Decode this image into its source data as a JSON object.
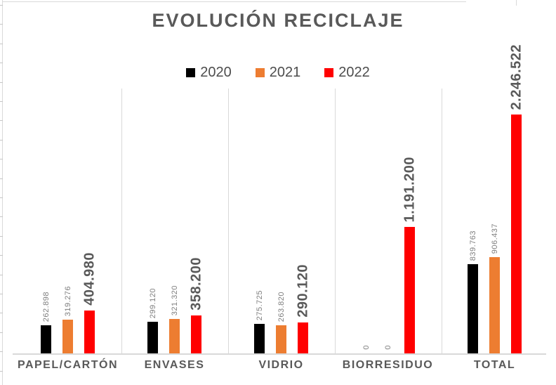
{
  "chart_data": {
    "type": "bar",
    "title": "EVOLUCIÓN RECICLAJE",
    "categories": [
      "PAPEL/CARTÓN",
      "ENVASES",
      "VIDRIO",
      "BIORRESIDUO",
      "TOTAL"
    ],
    "series": [
      {
        "name": "2020",
        "color": "#000000",
        "values": [
          262898,
          299120,
          275725,
          0,
          839763
        ],
        "labels": [
          "262.898",
          "299.120",
          "275.725",
          "0",
          "839.763"
        ]
      },
      {
        "name": "2021",
        "color": "#ED7D31",
        "values": [
          319276,
          321320,
          263820,
          0,
          906437
        ],
        "labels": [
          "319.276",
          "321.320",
          "263.820",
          "0",
          "906.437"
        ]
      },
      {
        "name": "2022",
        "color": "#FF0000",
        "values": [
          404980,
          358200,
          290120,
          1191200,
          2246522
        ],
        "labels": [
          "404.980",
          "358.200",
          "290.120",
          "1.191.200",
          "2.246.522"
        ]
      }
    ],
    "xlabel": "",
    "ylabel": "",
    "ylim": [
      0,
      2400000
    ],
    "y_axis_visible": false,
    "grid": "vertical-category-separators",
    "legend_position": "top-center",
    "data_labels": "rotated-90-above-bars"
  },
  "styles": {
    "title_color": "#595959",
    "legend_text_color": "#4d4d4d",
    "small_label_color": "#7f7f7f",
    "big_label_color": "#595959",
    "category_label_color": "#595959",
    "gridline_color": "#d9d9d9",
    "background": "#ffffff"
  }
}
